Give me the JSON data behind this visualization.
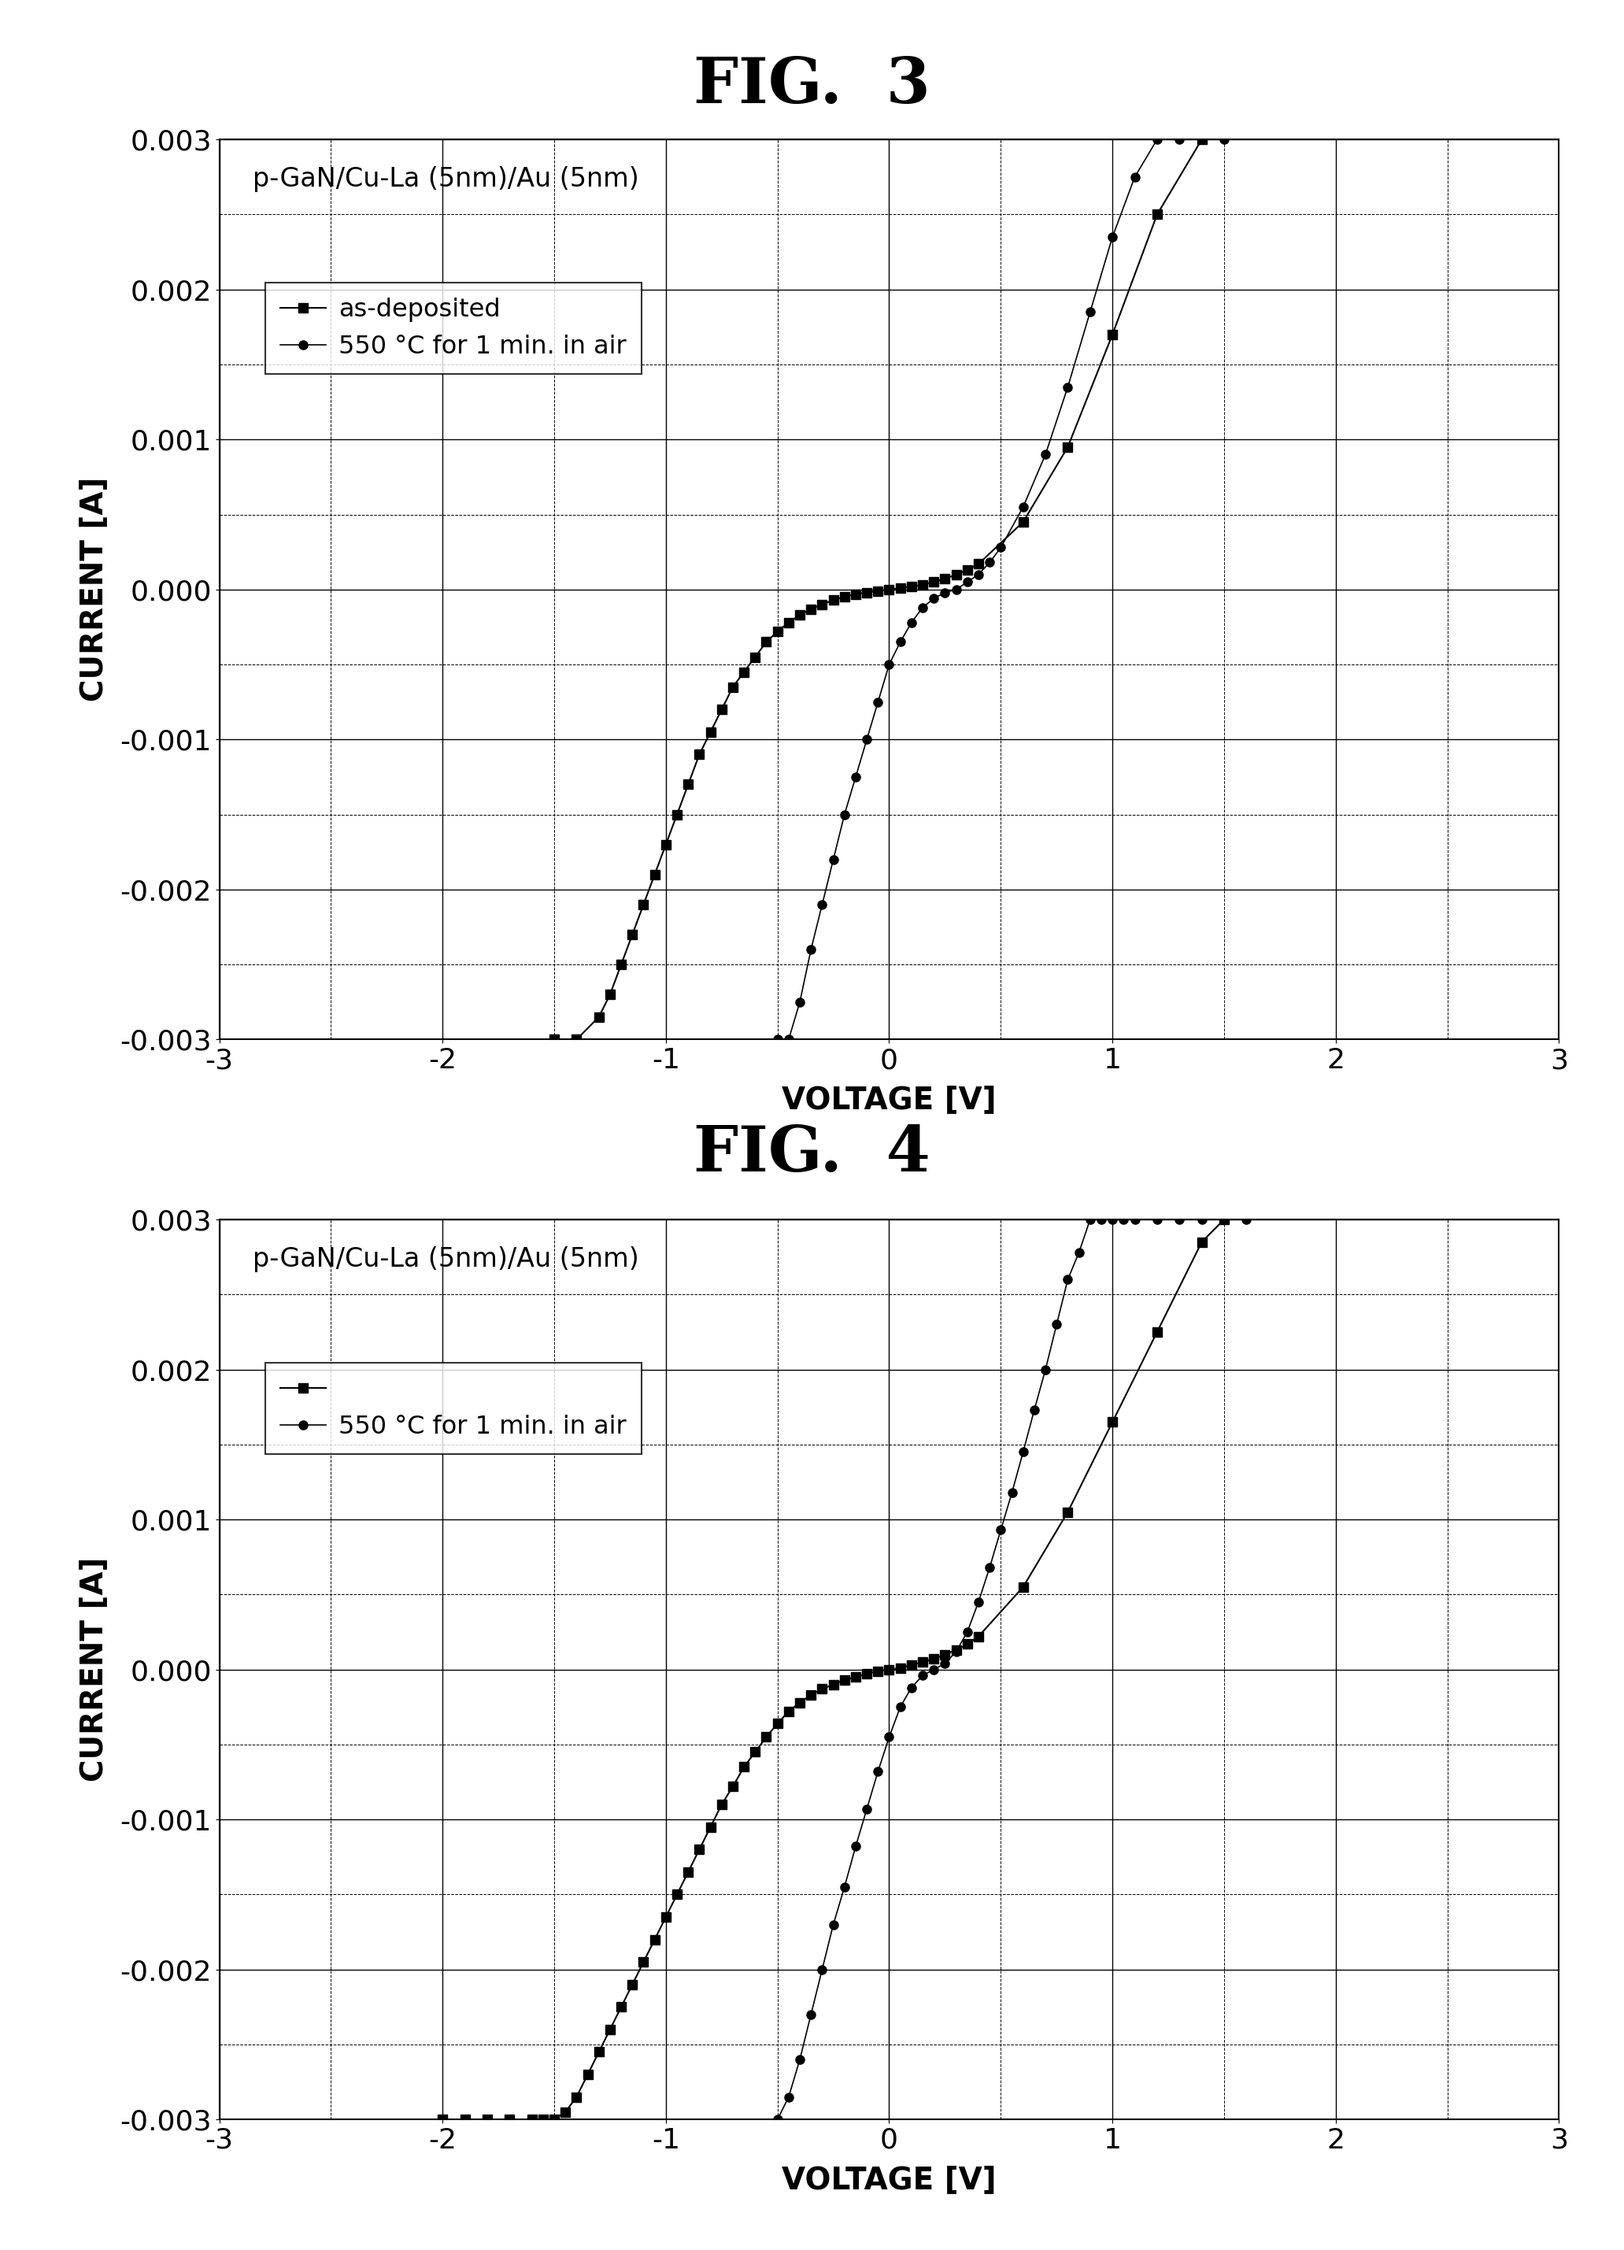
{
  "fig3_title": "FIG.  3",
  "fig4_title": "FIG.  4",
  "subtitle": "p-GaN/Cu-La (5nm)/Au (5nm)",
  "xlabel": "VOLTAGE [V]",
  "ylabel": "CURRENT [A]",
  "xlim": [
    -3,
    3
  ],
  "ylim": [
    -0.003,
    0.003
  ],
  "xticks": [
    -3,
    -2,
    -1,
    0,
    1,
    2,
    3
  ],
  "yticks": [
    -0.003,
    -0.002,
    -0.001,
    0.0,
    0.001,
    0.002,
    0.003
  ],
  "legend1_labels": [
    "as-deposited",
    "550 °C for 1 min. in air"
  ],
  "legend2_line1_label": "",
  "legend2_line2_label": "550 °C for 1 min. in air",
  "fig3_sq_x": [
    -1.5,
    -1.4,
    -1.3,
    -1.25,
    -1.2,
    -1.15,
    -1.1,
    -1.05,
    -1.0,
    -0.95,
    -0.9,
    -0.85,
    -0.8,
    -0.75,
    -0.7,
    -0.65,
    -0.6,
    -0.55,
    -0.5,
    -0.45,
    -0.4,
    -0.35,
    -0.3,
    -0.25,
    -0.2,
    -0.15,
    -0.1,
    -0.05,
    0.0,
    0.05,
    0.1,
    0.15,
    0.2,
    0.25,
    0.3,
    0.35,
    0.4,
    0.6,
    0.8,
    1.0,
    1.2,
    1.4
  ],
  "fig3_sq_y": [
    -0.003,
    -0.003,
    -0.00285,
    -0.0027,
    -0.0025,
    -0.0023,
    -0.0021,
    -0.0019,
    -0.0017,
    -0.0015,
    -0.0013,
    -0.0011,
    -0.00095,
    -0.0008,
    -0.00065,
    -0.00055,
    -0.00045,
    -0.00035,
    -0.00028,
    -0.00022,
    -0.00017,
    -0.00013,
    -0.0001,
    -7e-05,
    -5e-05,
    -3e-05,
    -2e-05,
    -1e-05,
    0.0,
    1e-05,
    2e-05,
    3e-05,
    5e-05,
    7e-05,
    0.0001,
    0.00013,
    0.00017,
    0.00045,
    0.00095,
    0.0017,
    0.0025,
    0.003
  ],
  "fig3_circ_x": [
    -0.5,
    -0.45,
    -0.4,
    -0.35,
    -0.3,
    -0.25,
    -0.2,
    -0.15,
    -0.1,
    -0.05,
    0.0,
    0.05,
    0.1,
    0.15,
    0.2,
    0.25,
    0.3,
    0.35,
    0.4,
    0.45,
    0.5,
    0.6,
    0.7,
    0.8,
    0.9,
    1.0,
    1.1,
    1.2,
    1.3,
    1.4,
    1.5
  ],
  "fig3_circ_y": [
    -0.003,
    -0.003,
    -0.00275,
    -0.0024,
    -0.0021,
    -0.0018,
    -0.0015,
    -0.00125,
    -0.001,
    -0.00075,
    -0.0005,
    -0.00035,
    -0.00022,
    -0.00012,
    -6e-05,
    -2e-05,
    0.0,
    5e-05,
    0.0001,
    0.00018,
    0.00028,
    0.00055,
    0.0009,
    0.00135,
    0.00185,
    0.00235,
    0.00275,
    0.003,
    0.003,
    0.003,
    0.003
  ],
  "fig4_sq_x": [
    -2.0,
    -1.9,
    -1.8,
    -1.7,
    -1.6,
    -1.55,
    -1.5,
    -1.45,
    -1.4,
    -1.35,
    -1.3,
    -1.25,
    -1.2,
    -1.15,
    -1.1,
    -1.05,
    -1.0,
    -0.95,
    -0.9,
    -0.85,
    -0.8,
    -0.75,
    -0.7,
    -0.65,
    -0.6,
    -0.55,
    -0.5,
    -0.45,
    -0.4,
    -0.35,
    -0.3,
    -0.25,
    -0.2,
    -0.15,
    -0.1,
    -0.05,
    0.0,
    0.05,
    0.1,
    0.15,
    0.2,
    0.25,
    0.3,
    0.35,
    0.4,
    0.6,
    0.8,
    1.0,
    1.2,
    1.4,
    1.5
  ],
  "fig4_sq_y": [
    -0.003,
    -0.003,
    -0.003,
    -0.003,
    -0.003,
    -0.003,
    -0.003,
    -0.00295,
    -0.00285,
    -0.0027,
    -0.00255,
    -0.0024,
    -0.00225,
    -0.0021,
    -0.00195,
    -0.0018,
    -0.00165,
    -0.0015,
    -0.00135,
    -0.0012,
    -0.00105,
    -0.0009,
    -0.00078,
    -0.00065,
    -0.00055,
    -0.00045,
    -0.00036,
    -0.00028,
    -0.00022,
    -0.00017,
    -0.00013,
    -0.0001,
    -7e-05,
    -5e-05,
    -3e-05,
    -1e-05,
    0.0,
    1e-05,
    3e-05,
    5e-05,
    7e-05,
    0.0001,
    0.00013,
    0.00017,
    0.00022,
    0.00055,
    0.00105,
    0.00165,
    0.00225,
    0.00285,
    0.003
  ],
  "fig4_circ_x": [
    -0.5,
    -0.45,
    -0.4,
    -0.35,
    -0.3,
    -0.25,
    -0.2,
    -0.15,
    -0.1,
    -0.05,
    0.0,
    0.05,
    0.1,
    0.15,
    0.2,
    0.25,
    0.3,
    0.35,
    0.4,
    0.45,
    0.5,
    0.55,
    0.6,
    0.65,
    0.7,
    0.75,
    0.8,
    0.85,
    0.9,
    0.95,
    1.0,
    1.05,
    1.1,
    1.2,
    1.3,
    1.4,
    1.5,
    1.6
  ],
  "fig4_circ_y": [
    -0.003,
    -0.00285,
    -0.0026,
    -0.0023,
    -0.002,
    -0.0017,
    -0.00145,
    -0.00118,
    -0.00093,
    -0.00068,
    -0.00045,
    -0.00025,
    -0.00012,
    -4e-05,
    0.0,
    4e-05,
    0.00012,
    0.00025,
    0.00045,
    0.00068,
    0.00093,
    0.00118,
    0.00145,
    0.00173,
    0.002,
    0.0023,
    0.0026,
    0.00278,
    0.003,
    0.003,
    0.003,
    0.003,
    0.003,
    0.003,
    0.003,
    0.003,
    0.003,
    0.003
  ],
  "background_color": "#ffffff"
}
